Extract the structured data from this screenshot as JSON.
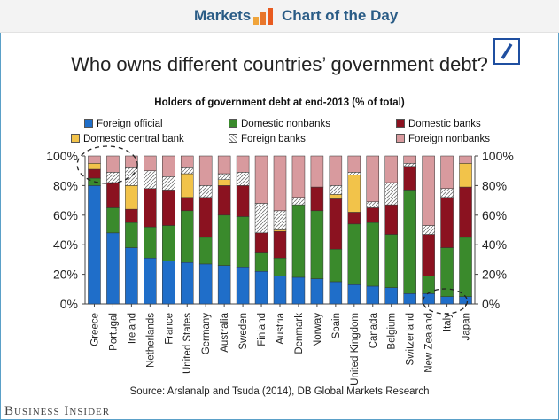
{
  "header": {
    "markets_label": "Markets",
    "chart_of_day_label": "Chart of the Day",
    "brand": "Business Insider",
    "source": "Source: Arslanalp and Tsuda (2014), DB Global Markets Research"
  },
  "colors": {
    "Foreign official": "#1f6ec9",
    "Domestic nonbanks": "#3a8a2c",
    "Domestic banks": "#8b1220",
    "Domestic central bank": "#f2c34a",
    "Foreign banks": "#e4e4e4",
    "Foreign nonbanks": "#d89a9e",
    "logo_blue": "#1f4fa0",
    "header_text": "#2a5c86"
  },
  "chart_data": {
    "type": "bar",
    "stacked": true,
    "title": "Who owns different countries’ government debt?",
    "subtitle": "Holders of government debt at end-2013 (% of total)",
    "categories": [
      "Greece",
      "Portugal",
      "Ireland",
      "Netherlands",
      "France",
      "United States",
      "Germany",
      "Australia",
      "Sweden",
      "Finland",
      "Austria",
      "Denmark",
      "Norway",
      "Spain",
      "United Kingdom",
      "Canada",
      "Belgium",
      "Switzerland",
      "New Zealand",
      "Italy",
      "Japan"
    ],
    "series": [
      {
        "name": "Foreign official",
        "values": [
          80,
          48,
          38,
          31,
          29,
          28,
          27,
          26,
          25,
          22,
          19,
          18,
          17,
          15,
          13,
          12,
          11,
          7,
          7,
          5,
          5
        ]
      },
      {
        "name": "Domestic nonbanks",
        "values": [
          5,
          17,
          17,
          21,
          24,
          35,
          18,
          34,
          34,
          13,
          12,
          49,
          46,
          22,
          41,
          43,
          36,
          70,
          12,
          33,
          40
        ]
      },
      {
        "name": "Domestic banks",
        "values": [
          6,
          17,
          9,
          26,
          24,
          9,
          27,
          20,
          21,
          13,
          18,
          0,
          16,
          34,
          8,
          10,
          20,
          16,
          28,
          34,
          34
        ]
      },
      {
        "name": "Domestic central bank",
        "values": [
          4,
          0,
          16,
          0,
          0,
          16,
          0,
          4,
          0,
          0,
          1,
          0,
          0,
          3,
          25,
          0,
          0,
          0,
          0,
          0,
          16
        ]
      },
      {
        "name": "Foreign banks",
        "values": [
          0,
          7,
          12,
          12,
          9,
          4,
          8,
          4,
          9,
          20,
          13,
          5,
          0,
          6,
          2,
          4,
          15,
          2,
          6,
          6,
          0
        ]
      },
      {
        "name": "Foreign nonbanks",
        "values": [
          5,
          11,
          8,
          10,
          14,
          8,
          20,
          12,
          11,
          32,
          37,
          28,
          21,
          20,
          11,
          31,
          18,
          5,
          47,
          22,
          5
        ]
      }
    ],
    "y_ticks": [
      "0%",
      "20%",
      "40%",
      "60%",
      "80%",
      "100%"
    ],
    "ylim": [
      0,
      100
    ],
    "legend_position": "top",
    "grid": false
  }
}
